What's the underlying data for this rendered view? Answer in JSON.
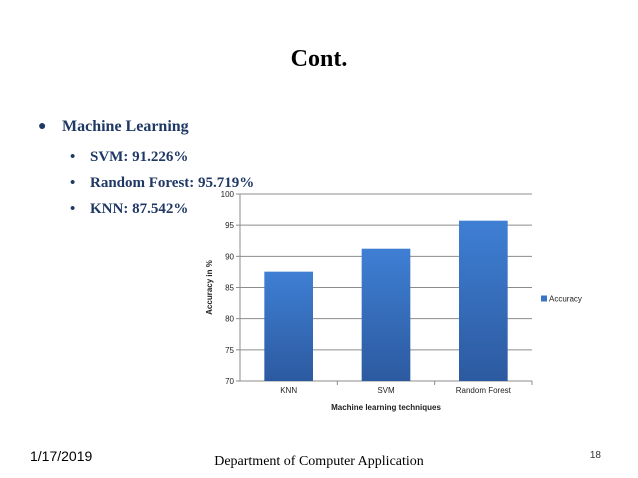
{
  "slide": {
    "title": "Cont.",
    "bullet_main": "Machine Learning",
    "sub_bullets": [
      "SVM: 91.226%",
      "Random Forest: 95.719%",
      "KNN: 87.542%"
    ],
    "footer_date": "1/17/2019",
    "footer_department": "Department of Computer Application",
    "slide_number": "18"
  },
  "chart_data": {
    "type": "bar",
    "categories": [
      "KNN",
      "SVM",
      "Random Forest"
    ],
    "series": [
      {
        "name": "Accuracy",
        "values": [
          87.542,
          91.226,
          95.719
        ]
      }
    ],
    "xlabel": "Machine learning techniques",
    "ylabel": "Accuracy in %",
    "ylim": [
      70,
      100
    ],
    "yticks": [
      70,
      75,
      80,
      85,
      90,
      95,
      100
    ],
    "grid": true,
    "legend": "right",
    "bar_color": "#3a74c4"
  }
}
